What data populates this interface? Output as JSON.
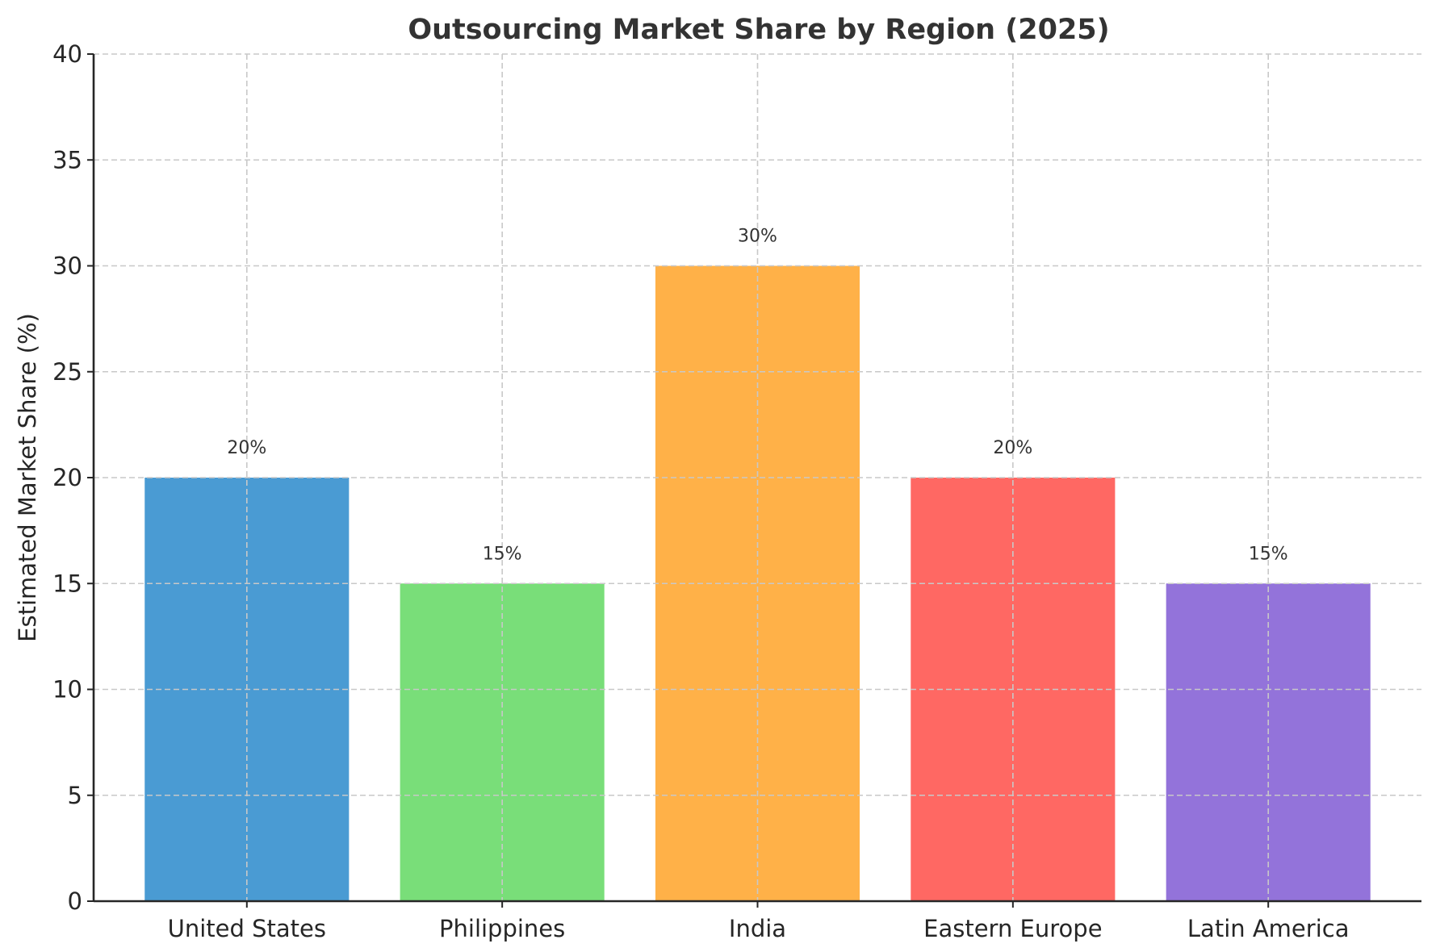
{
  "chart_data": {
    "type": "bar",
    "title": "Outsourcing Market Share by Region (2025)",
    "xlabel": "",
    "ylabel": "Estimated Market Share (%)",
    "categories": [
      "United States",
      "Philippines",
      "India",
      "Eastern Europe",
      "Latin America"
    ],
    "values": [
      20,
      15,
      30,
      20,
      15
    ],
    "value_labels": [
      "20%",
      "15%",
      "30%",
      "20%",
      "15%"
    ],
    "colors": [
      "#4a9bd3",
      "#79de79",
      "#ffb148",
      "#ff6863",
      "#9373da"
    ],
    "ylim": [
      0,
      40
    ],
    "yticks": [
      0,
      5,
      10,
      15,
      20,
      25,
      30,
      35,
      40
    ],
    "grid": true,
    "grid_style": "dashed",
    "legend": null
  }
}
